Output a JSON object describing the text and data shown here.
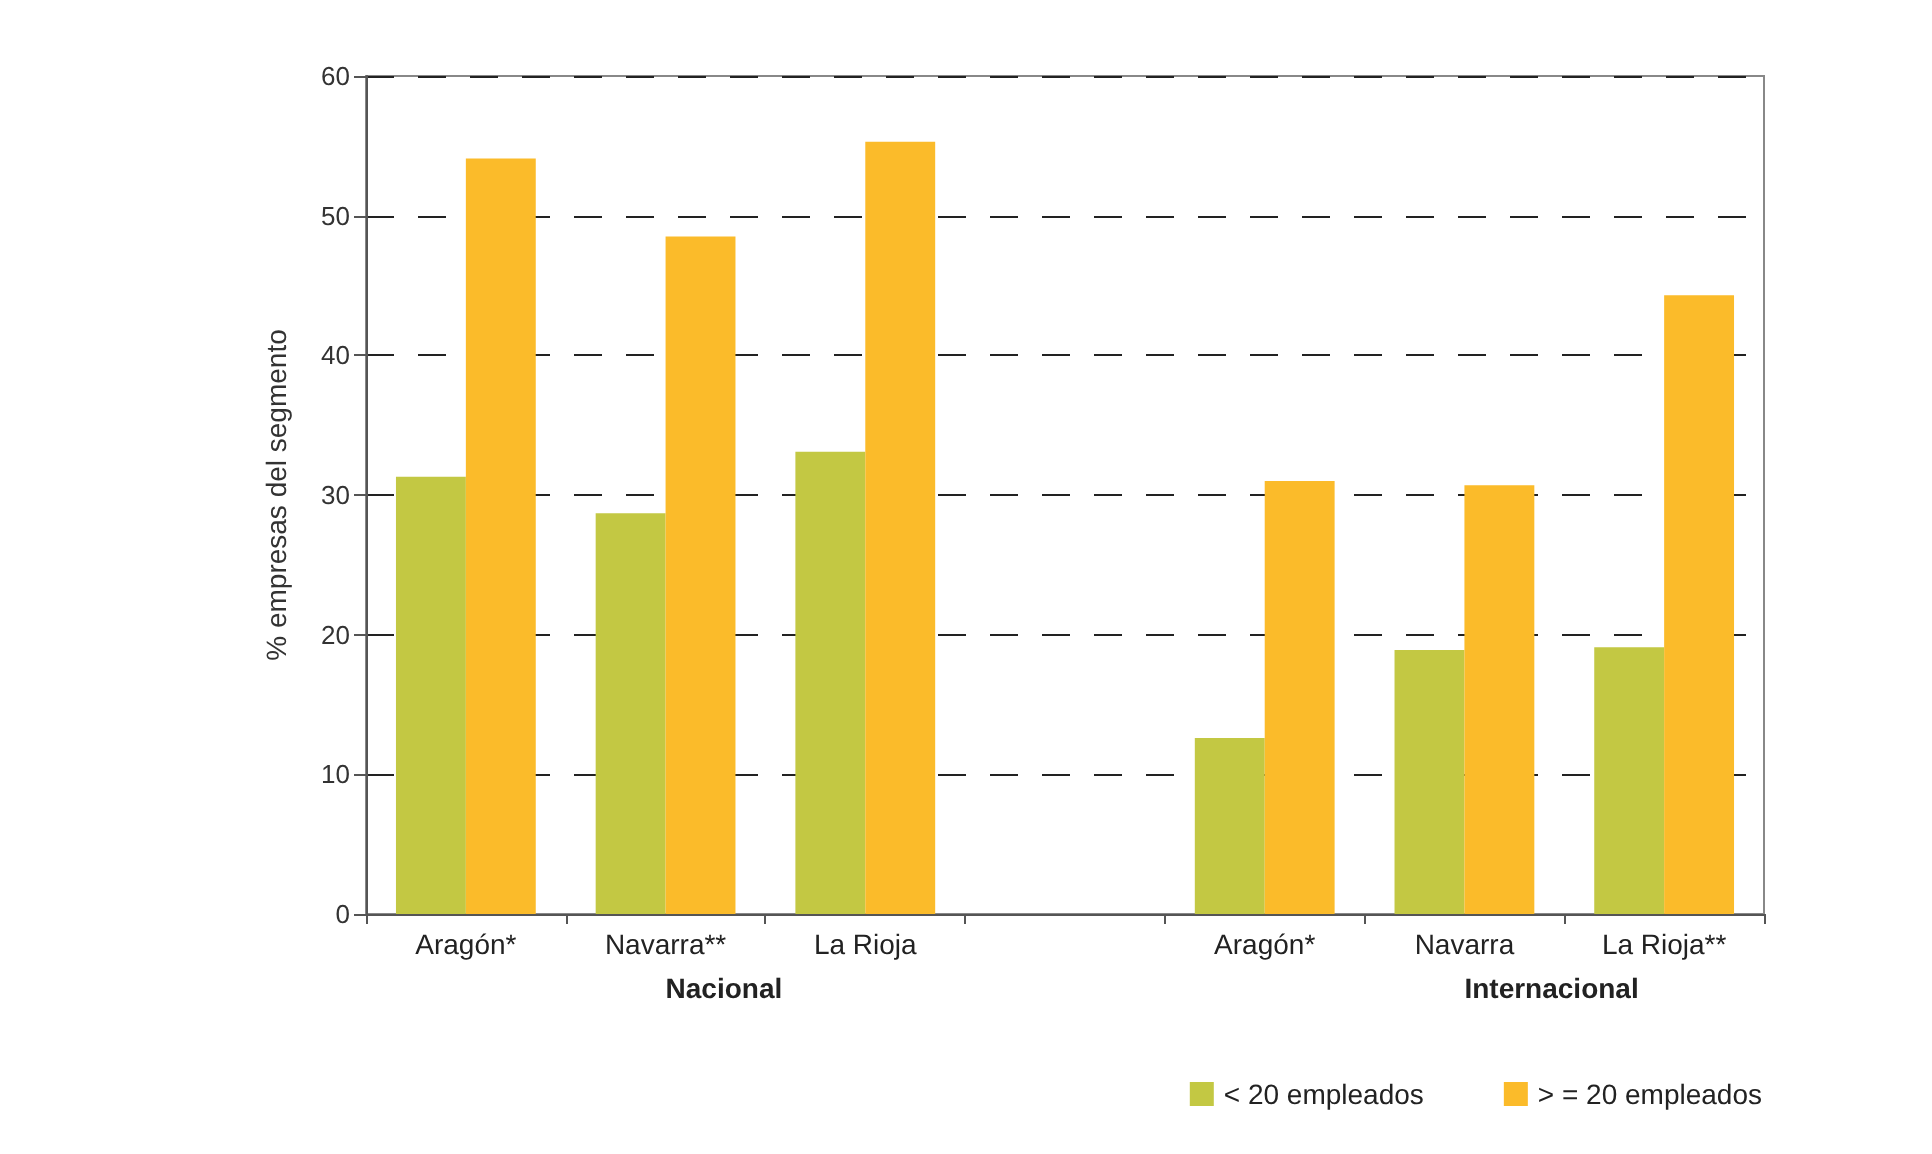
{
  "chart_data": {
    "type": "bar",
    "ylabel": "% empresas del segmento",
    "categories": [
      "Aragón*",
      "Navarra**",
      "La Rioja",
      null,
      "Aragón*",
      "Navarra",
      "La Rioja**"
    ],
    "series": [
      {
        "name": "< 20 empleados",
        "color": "#c3c843",
        "values": [
          31.3,
          28.7,
          33.1,
          null,
          12.6,
          18.9,
          19.1
        ]
      },
      {
        "name": "> = 20 empleados",
        "color": "#fbbb2a",
        "values": [
          54.1,
          48.5,
          55.3,
          null,
          31.0,
          30.7,
          44.3
        ]
      }
    ],
    "ylim": [
      0,
      60
    ],
    "yticks": [
      0,
      10,
      20,
      30,
      40,
      50,
      60
    ],
    "grid": "y",
    "legend": "bottom right",
    "annotations": [
      "Nacional",
      "Internacional"
    ]
  }
}
